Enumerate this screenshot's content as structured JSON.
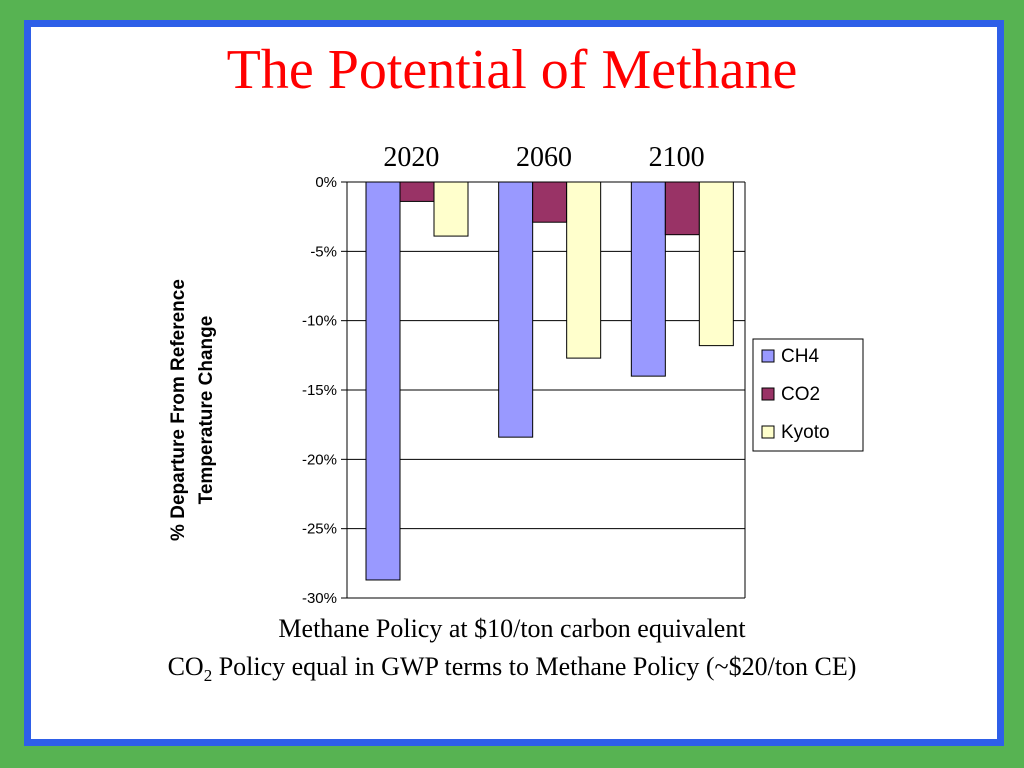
{
  "slide": {
    "title": "The Potential of Methane",
    "caption1": "Methane Policy at $10/ton carbon equivalent",
    "caption2_pre": "CO",
    "caption2_sub": "2",
    "caption2_post": " Policy equal in GWP terms to Methane Policy (~$20/ton CE)"
  },
  "chart_data": {
    "type": "bar",
    "categories": [
      "2020",
      "2060",
      "2100"
    ],
    "series": [
      {
        "name": "CH4",
        "color": "#9999ff",
        "values": [
          -28.7,
          -18.4,
          -14.0
        ]
      },
      {
        "name": "CO2",
        "color": "#993366",
        "values": [
          -1.4,
          -2.9,
          -3.8
        ]
      },
      {
        "name": "Kyoto",
        "color": "#ffffcc",
        "values": [
          -3.9,
          -12.7,
          -11.8
        ]
      }
    ],
    "ylabel": [
      "% Departure From Reference",
      "Temperature Change"
    ],
    "ylim": [
      -30,
      0
    ],
    "yticks": [
      0,
      -5,
      -10,
      -15,
      -20,
      -25,
      -30
    ],
    "ytick_labels": [
      "0%",
      "-5%",
      "-10%",
      "-15%",
      "-20%",
      "-25%",
      "-30%"
    ],
    "grid": true,
    "legend": "right"
  }
}
